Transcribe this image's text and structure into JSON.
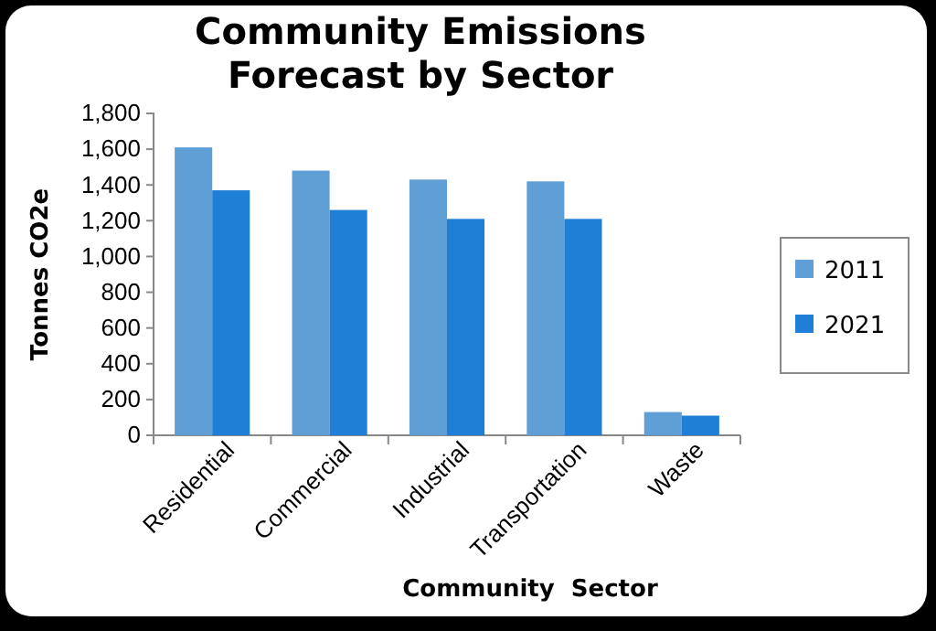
{
  "chart_data": {
    "type": "bar",
    "title": "Community Emissions Forecast by Sector",
    "xlabel": "Community  Sector",
    "ylabel": "Tonnes CO2e",
    "categories": [
      "Residential",
      "Commercial",
      "Industrial",
      "Transportation",
      "Waste"
    ],
    "series": [
      {
        "name": "2011",
        "color": "#609fd6",
        "values": [
          1610,
          1480,
          1430,
          1420,
          130
        ]
      },
      {
        "name": "2021",
        "color": "#1f7fd6",
        "values": [
          1370,
          1260,
          1210,
          1210,
          110
        ]
      }
    ],
    "ylim": [
      0,
      1800
    ],
    "yticks": [
      {
        "value": 0,
        "label": "0"
      },
      {
        "value": 200,
        "label": "200"
      },
      {
        "value": 400,
        "label": "400"
      },
      {
        "value": 600,
        "label": "600"
      },
      {
        "value": 800,
        "label": "800"
      },
      {
        "value": 1000,
        "label": "1,000"
      },
      {
        "value": 1200,
        "label": "1,200"
      },
      {
        "value": 1400,
        "label": "1,400"
      },
      {
        "value": 1600,
        "label": "1,600"
      },
      {
        "value": 1800,
        "label": "1,800"
      }
    ],
    "grid": false,
    "legend": "right"
  }
}
